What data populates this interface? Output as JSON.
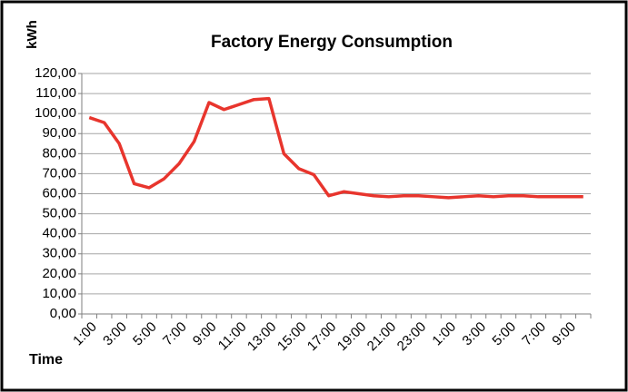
{
  "chart_data": {
    "type": "line",
    "title": "Factory Energy Consumption",
    "ylabel": "kWh",
    "xlabel": "Time",
    "categories": [
      "1:00",
      null,
      "3:00",
      null,
      "5:00",
      null,
      "7:00",
      null,
      "9:00",
      null,
      "11:00",
      null,
      "13:00",
      null,
      "15:00",
      null,
      "17:00",
      null,
      "19:00",
      null,
      "21:00",
      null,
      "23:00",
      null,
      "1:00",
      null,
      "3:00",
      null,
      "5:00",
      null,
      "7:00",
      null,
      "9:00",
      null
    ],
    "series": [
      {
        "name": "kWh",
        "color": "#e8352d",
        "values": [
          98,
          95.5,
          85,
          65,
          63,
          67.5,
          75,
          86,
          105.5,
          102,
          104.5,
          107,
          107.5,
          80,
          72.5,
          69.5,
          59,
          61,
          60,
          59,
          58.5,
          59,
          59,
          58.5,
          58,
          58.5,
          59,
          58.5,
          59,
          59,
          58.5,
          58.5,
          58.5,
          58.5
        ]
      }
    ],
    "ylim": [
      0,
      120
    ],
    "yticks": [
      {
        "value": 0,
        "label": "0,00"
      },
      {
        "value": 10,
        "label": "10,00"
      },
      {
        "value": 20,
        "label": "20,00"
      },
      {
        "value": 30,
        "label": "30,00"
      },
      {
        "value": 40,
        "label": "40,00"
      },
      {
        "value": 50,
        "label": "50,00"
      },
      {
        "value": 60,
        "label": "60,00"
      },
      {
        "value": 70,
        "label": "70,00"
      },
      {
        "value": 80,
        "label": "80,00"
      },
      {
        "value": 90,
        "label": "90,00"
      },
      {
        "value": 100,
        "label": "100,00"
      },
      {
        "value": 110,
        "label": "110,00"
      },
      {
        "value": 120,
        "label": "120,00"
      }
    ],
    "grid": true
  }
}
